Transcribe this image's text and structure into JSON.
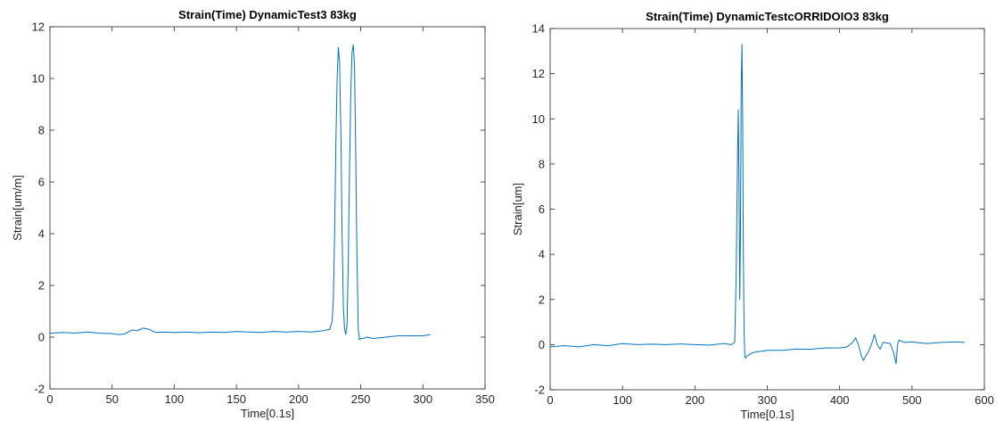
{
  "chart_data": [
    {
      "type": "line",
      "title": "Strain(Time) DynamicTest3 83kg",
      "xlabel": "Time[0.1s]",
      "ylabel": "Strain[um/m]",
      "xlim": [
        0,
        350
      ],
      "ylim": [
        -2,
        12
      ],
      "xticks": [
        "0",
        "50",
        "100",
        "150",
        "200",
        "250",
        "300",
        "350"
      ],
      "yticks": [
        "-2",
        "0",
        "2",
        "4",
        "6",
        "8",
        "10",
        "12"
      ],
      "grid": false,
      "line_color": "#0072BD",
      "series": [
        {
          "x": [
            0,
            10,
            20,
            30,
            40,
            50,
            55,
            60,
            63,
            66,
            70,
            75,
            80,
            85,
            90,
            100,
            110,
            120,
            130,
            140,
            150,
            160,
            170,
            180,
            190,
            200,
            210,
            220,
            225,
            227,
            228,
            229,
            230,
            231,
            232,
            233,
            234,
            235,
            236,
            237,
            238,
            239,
            240,
            241,
            242,
            243,
            244,
            245,
            246,
            247,
            248,
            249,
            250,
            252,
            255,
            260,
            270,
            280,
            290,
            300,
            306
          ],
          "y": [
            0.15,
            0.18,
            0.16,
            0.2,
            0.15,
            0.14,
            0.1,
            0.12,
            0.2,
            0.28,
            0.25,
            0.35,
            0.3,
            0.18,
            0.2,
            0.18,
            0.2,
            0.17,
            0.2,
            0.18,
            0.22,
            0.2,
            0.18,
            0.22,
            0.2,
            0.22,
            0.2,
            0.25,
            0.3,
            0.6,
            1.5,
            4.0,
            7.5,
            10.0,
            11.2,
            10.6,
            8.0,
            4.0,
            1.2,
            0.3,
            0.1,
            0.5,
            3.0,
            6.5,
            9.5,
            11.0,
            11.3,
            10.5,
            7.0,
            3.0,
            0.3,
            -0.1,
            -0.05,
            -0.05,
            0.0,
            -0.05,
            0.0,
            0.05,
            0.05,
            0.05,
            0.1
          ]
        }
      ]
    },
    {
      "type": "line",
      "title": "Strain(Time) DynamicTestcORRIDOIO3 83kg",
      "xlabel": "Time[0.1s]",
      "ylabel": "Strain[um]",
      "xlim": [
        0,
        600
      ],
      "ylim": [
        -2,
        14
      ],
      "xticks": [
        "0",
        "100",
        "200",
        "300",
        "400",
        "500",
        "600"
      ],
      "yticks": [
        "-2",
        "0",
        "2",
        "4",
        "6",
        "8",
        "10",
        "12",
        "14"
      ],
      "grid": false,
      "line_color": "#0072BD",
      "series": [
        {
          "x": [
            0,
            20,
            40,
            60,
            80,
            100,
            120,
            140,
            160,
            180,
            200,
            220,
            240,
            250,
            255,
            257,
            259,
            260,
            261,
            262,
            263,
            264,
            265,
            266,
            267,
            268,
            269,
            270,
            272,
            275,
            280,
            290,
            300,
            320,
            340,
            360,
            380,
            400,
            410,
            418,
            422,
            426,
            430,
            433,
            436,
            440,
            445,
            448,
            452,
            456,
            460,
            470,
            475,
            478,
            480,
            482,
            485,
            490,
            500,
            520,
            540,
            560,
            573
          ],
          "y": [
            -0.1,
            -0.05,
            -0.1,
            0.0,
            -0.05,
            0.05,
            0.0,
            0.02,
            0.0,
            0.03,
            0.0,
            -0.02,
            0.05,
            0.0,
            0.1,
            3.0,
            8.5,
            10.4,
            7.0,
            2.0,
            5.0,
            11.5,
            13.3,
            10.0,
            4.0,
            0.5,
            -0.5,
            -0.6,
            -0.5,
            -0.45,
            -0.35,
            -0.3,
            -0.25,
            -0.25,
            -0.2,
            -0.2,
            -0.15,
            -0.15,
            -0.1,
            0.1,
            0.3,
            0.0,
            -0.5,
            -0.7,
            -0.5,
            -0.3,
            0.1,
            0.45,
            0.0,
            -0.2,
            0.1,
            0.05,
            -0.4,
            -0.85,
            0.0,
            0.2,
            0.15,
            0.1,
            0.12,
            0.05,
            0.1,
            0.12,
            0.1
          ]
        }
      ]
    }
  ]
}
